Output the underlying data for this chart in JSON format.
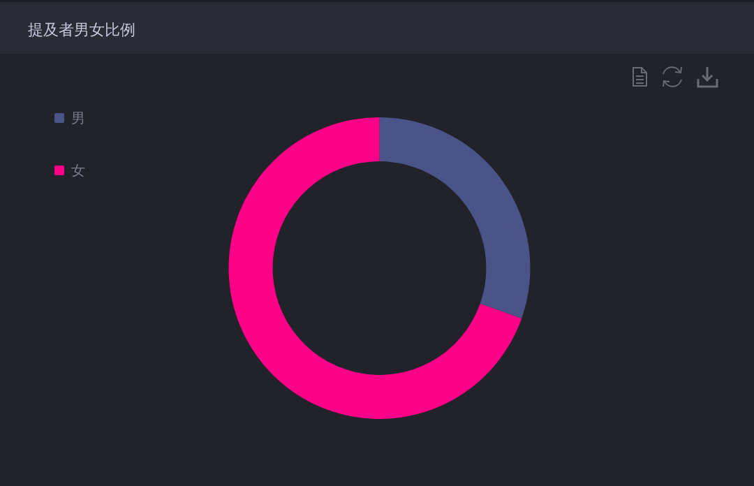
{
  "chart_data": {
    "type": "donut",
    "title": "提及者男女比例",
    "categories": [
      "男",
      "女"
    ],
    "values": [
      30.4,
      69.6
    ],
    "colors": [
      "#4a5488",
      "#ff0088"
    ],
    "legend": "top left"
  }
}
